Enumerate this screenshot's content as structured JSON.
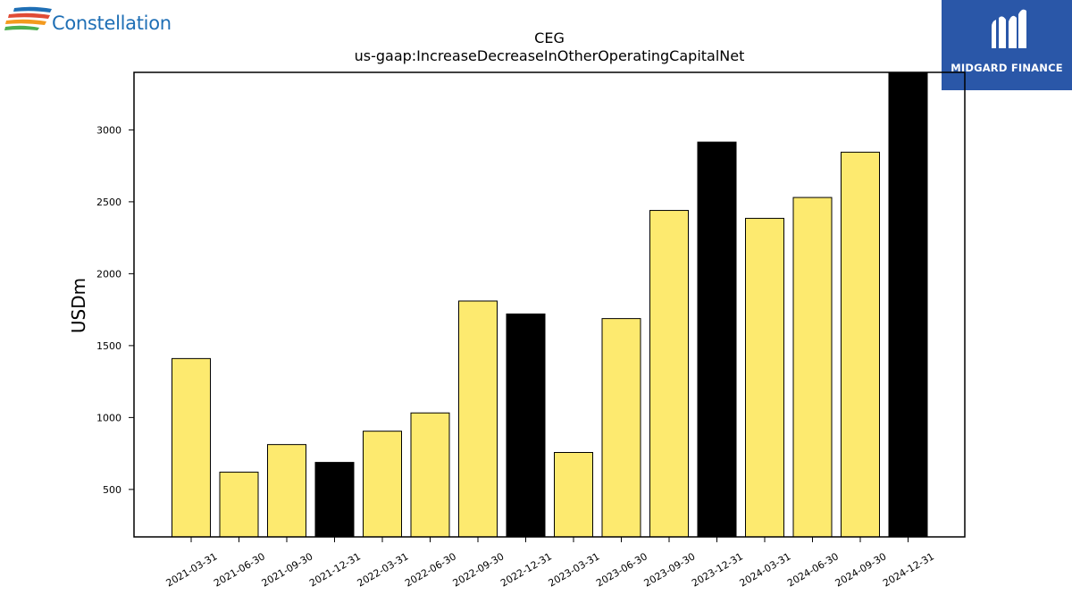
{
  "branding": {
    "company_name": "Constellation",
    "company_logo_icon": "constellation-swoosh-icon",
    "publisher_name": "MIDGARD FINANCE",
    "publisher_logo_icon": "midgard-m-icon",
    "publisher_color": "#2a57a8"
  },
  "chart_data": {
    "type": "bar",
    "title": "CEG",
    "subtitle": "us-gaap:IncreaseDecreaseInOtherOperatingCapitalNet",
    "xlabel": "",
    "ylabel": "USDm",
    "ylim": [
      170,
      3400
    ],
    "yticks": [
      500,
      1000,
      1500,
      2000,
      2500,
      3000
    ],
    "grid": false,
    "colors": {
      "quarter": "#fdea6f",
      "year_end": "#000000"
    },
    "categories": [
      "2021-03-31",
      "2021-06-30",
      "2021-09-30",
      "2021-12-31",
      "2022-03-31",
      "2022-06-30",
      "2022-09-30",
      "2022-12-31",
      "2023-03-31",
      "2023-06-30",
      "2023-09-30",
      "2023-12-31",
      "2024-03-31",
      "2024-06-30",
      "2024-09-30",
      "2024-12-31"
    ],
    "values": [
      1410,
      620,
      812,
      688,
      905,
      1032,
      1810,
      1720,
      757,
      1688,
      2440,
      2915,
      2385,
      2530,
      2845,
      3400
    ],
    "year_end": [
      false,
      false,
      false,
      true,
      false,
      false,
      false,
      true,
      false,
      false,
      false,
      true,
      false,
      false,
      false,
      true
    ]
  }
}
